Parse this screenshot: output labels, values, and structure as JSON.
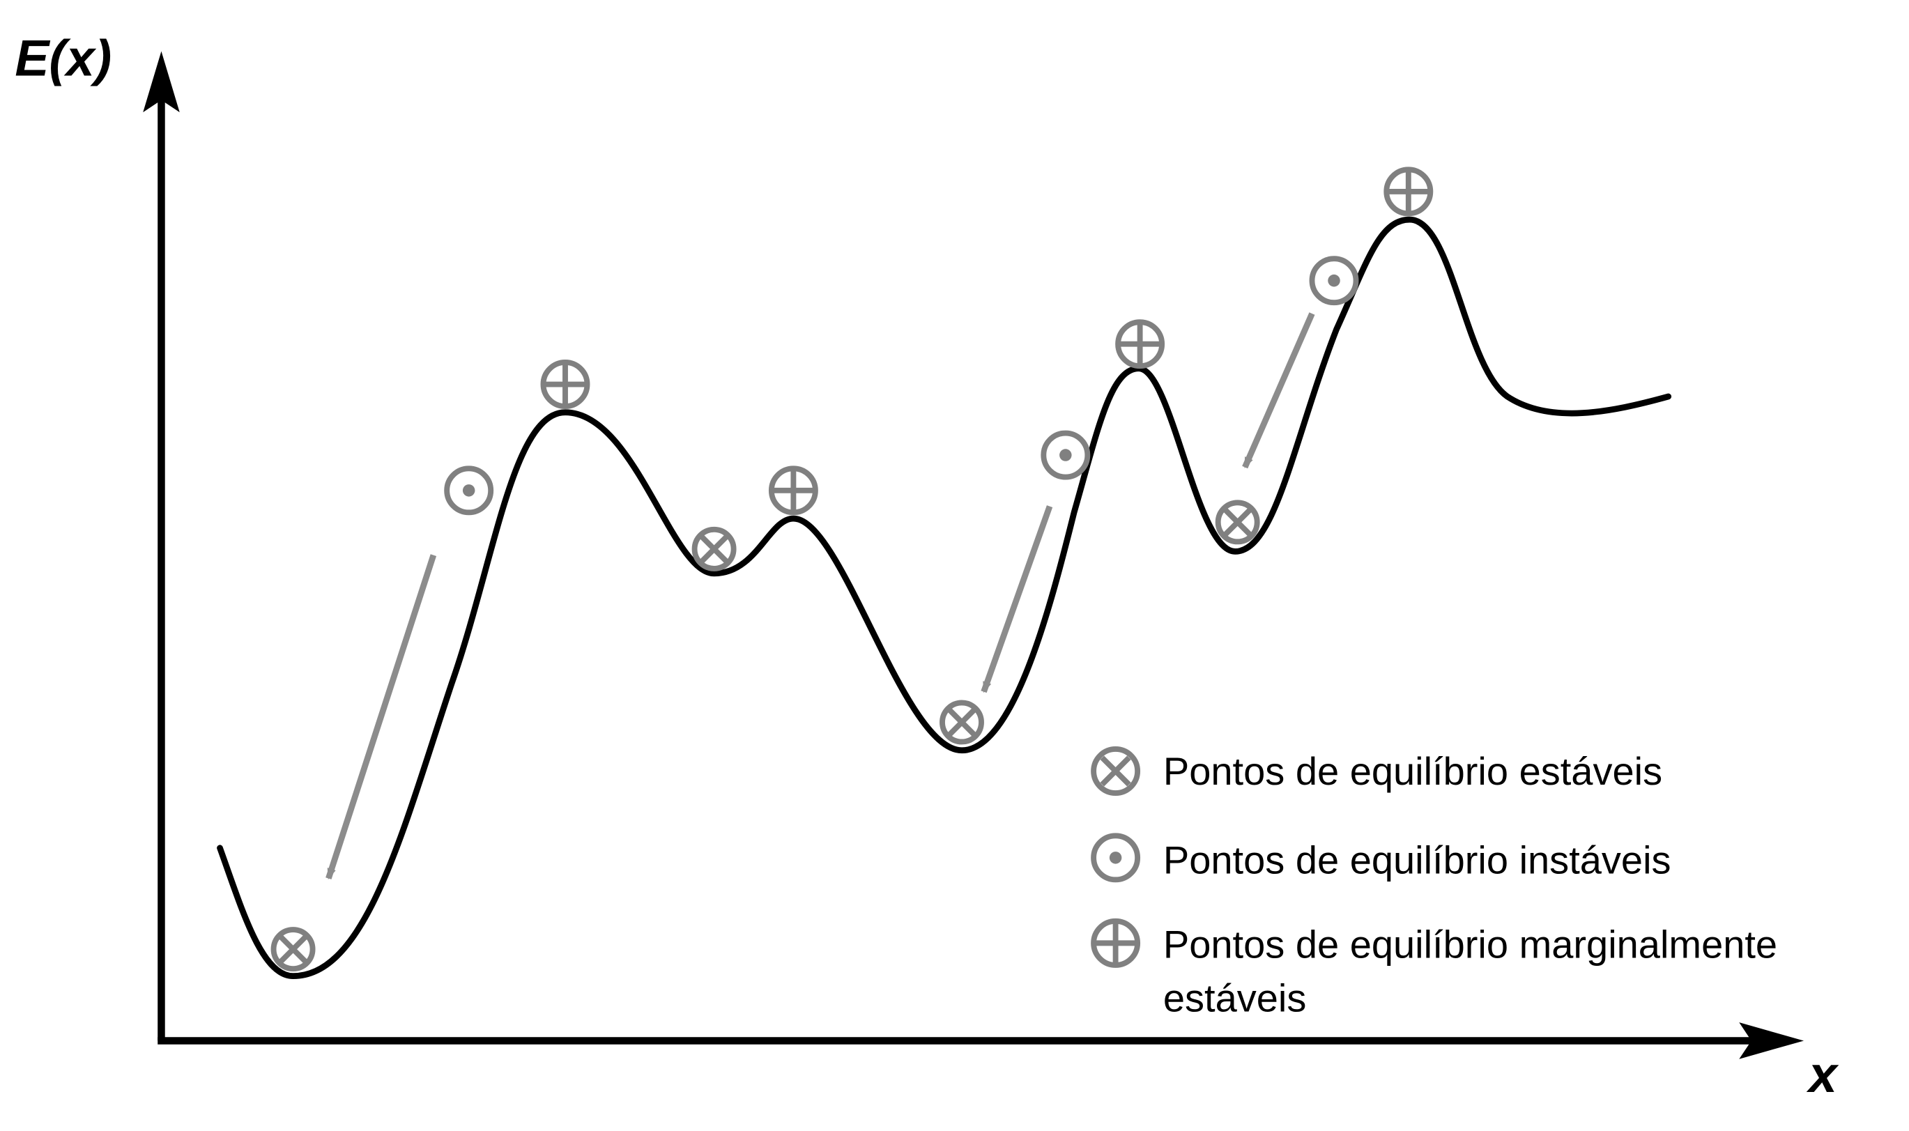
{
  "axes": {
    "y_label": "E(x)",
    "x_label": "x"
  },
  "legend": {
    "stable": "Pontos de equilíbrio estáveis",
    "unstable": "Pontos de equilíbrio instáveis",
    "marginal_line1": "Pontos de equilíbrio marginalmente",
    "marginal_line2": "estáveis"
  },
  "colors": {
    "curve": "#000000",
    "markers": "#808080",
    "arrows": "#8c8c8c"
  }
}
